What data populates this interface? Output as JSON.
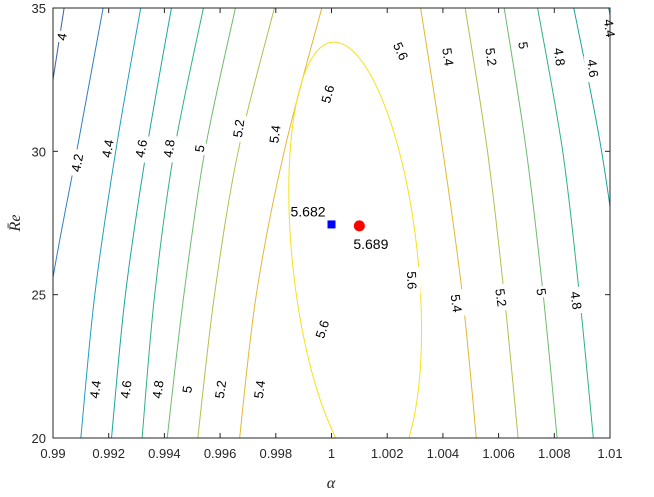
{
  "chart_data": {
    "type": "contour",
    "title": "",
    "xlabel": "α",
    "ylabel": "R̄e",
    "xlim": [
      0.99,
      1.01
    ],
    "ylim": [
      20,
      35
    ],
    "xticks": [
      0.99,
      0.992,
      0.994,
      0.996,
      0.998,
      1,
      1.002,
      1.004,
      1.006,
      1.008,
      1.01
    ],
    "xtick_labels": [
      "0.99",
      "0.992",
      "0.994",
      "0.996",
      "0.998",
      "1",
      "1.002",
      "1.004",
      "1.006",
      "1.008",
      "1.01"
    ],
    "yticks": [
      20,
      25,
      30,
      35
    ],
    "ytick_labels": [
      "20",
      "25",
      "30",
      "35"
    ],
    "grid": false,
    "contour_levels": [
      4,
      4.2,
      4.4,
      4.6,
      4.8,
      5,
      5.2,
      5.4,
      5.6
    ],
    "level_colors": {
      "4": "#3d5fa5",
      "4.2": "#2f7fbf",
      "4.4": "#1f9fc0",
      "4.6": "#1aa79c",
      "4.8": "#2fb089",
      "5": "#6fbb6f",
      "5.2": "#b7bd4d",
      "5.4": "#e2b833",
      "5.6": "#f5e11c"
    },
    "left_lines": [
      {
        "level": 4,
        "x": [
          0.9904,
          0.9896,
          0.9888,
          0.9881
        ],
        "y": [
          35,
          30,
          25,
          20
        ]
      },
      {
        "level": 4.2,
        "x": [
          0.9918,
          0.99085,
          0.9899,
          0.98925
        ],
        "y": [
          35,
          30,
          25,
          20
        ]
      },
      {
        "level": 4.4,
        "x": [
          0.99315,
          0.99225,
          0.9915,
          0.991
        ],
        "y": [
          35,
          30,
          25,
          20
        ]
      },
      {
        "level": 4.6,
        "x": [
          0.99425,
          0.99335,
          0.9926,
          0.9921
        ],
        "y": [
          35,
          30,
          25,
          20
        ]
      },
      {
        "level": 4.8,
        "x": [
          0.9954,
          0.99435,
          0.99365,
          0.9932
        ],
        "y": [
          35,
          30,
          25,
          20
        ]
      },
      {
        "level": 5,
        "x": [
          0.99655,
          0.99545,
          0.9947,
          0.9941
        ],
        "y": [
          35,
          30,
          25,
          20
        ]
      },
      {
        "level": 5.2,
        "x": [
          0.99795,
          0.99665,
          0.9958,
          0.9952
        ],
        "y": [
          35,
          30,
          25,
          20
        ]
      },
      {
        "level": 5.4,
        "x": [
          0.99965,
          0.9983,
          0.9973,
          0.9967
        ],
        "y": [
          35,
          30,
          25,
          20
        ]
      }
    ],
    "right_lines": [
      {
        "level": 5.4,
        "x": [
          1.0032,
          1.004,
          1.0047,
          1.0052
        ],
        "y": [
          35,
          30,
          25,
          20
        ]
      },
      {
        "level": 5.2,
        "x": [
          1.0048,
          1.0056,
          1.0062,
          1.0067
        ],
        "y": [
          35,
          30,
          25,
          20
        ]
      },
      {
        "level": 5,
        "x": [
          1.0062,
          1.007,
          1.0076,
          1.0081
        ],
        "y": [
          35,
          30,
          25,
          20
        ]
      },
      {
        "level": 4.8,
        "x": [
          1.0074,
          1.0083,
          1.0089,
          1.0094
        ],
        "y": [
          35,
          30,
          25,
          20
        ]
      },
      {
        "level": 4.6,
        "x": [
          1.0087,
          1.0097,
          1.0104,
          1.0109
        ],
        "y": [
          35,
          30,
          25,
          20
        ]
      },
      {
        "level": 4.4,
        "x": [
          1.00995,
          1.011,
          1.0118,
          1.0123
        ],
        "y": [
          35,
          30,
          25,
          20
        ]
      }
    ],
    "ellipse_5_6": {
      "level": 5.6,
      "center": [
        1.00085,
        26.2
      ],
      "half_width_x": 0.00225,
      "half_height_y": 7.65,
      "tilt_deg": -6
    },
    "contour_labels": [
      {
        "text": "4",
        "x": 0.9903,
        "y": 34.0,
        "rot": -80
      },
      {
        "text": "4.2",
        "x": 0.99085,
        "y": 29.6,
        "rot": -80
      },
      {
        "text": "4.4",
        "x": 0.99195,
        "y": 30.1,
        "rot": -80
      },
      {
        "text": "4.6",
        "x": 0.99315,
        "y": 30.1,
        "rot": -80
      },
      {
        "text": "4.8",
        "x": 0.99415,
        "y": 30.1,
        "rot": -82
      },
      {
        "text": "5",
        "x": 0.99525,
        "y": 30.1,
        "rot": -82
      },
      {
        "text": "5.2",
        "x": 0.99665,
        "y": 30.8,
        "rot": -82
      },
      {
        "text": "5.4",
        "x": 0.99795,
        "y": 30.6,
        "rot": -82
      },
      {
        "text": "5.6",
        "x": 0.99985,
        "y": 32.0,
        "rot": -75
      },
      {
        "text": "5.6",
        "x": 1.0025,
        "y": 33.5,
        "rot": 65
      },
      {
        "text": "5.4",
        "x": 1.0042,
        "y": 33.3,
        "rot": 82
      },
      {
        "text": "5.2",
        "x": 1.00575,
        "y": 33.3,
        "rot": 82
      },
      {
        "text": "5",
        "x": 1.0069,
        "y": 33.7,
        "rot": 82
      },
      {
        "text": "4.8",
        "x": 1.0082,
        "y": 33.3,
        "rot": 82
      },
      {
        "text": "4.6",
        "x": 1.0094,
        "y": 32.9,
        "rot": 82
      },
      {
        "text": "4.4",
        "x": 1.01,
        "y": 34.3,
        "rot": 82
      },
      {
        "text": "4.4",
        "x": 0.9915,
        "y": 21.7,
        "rot": -82
      },
      {
        "text": "4.6",
        "x": 0.9926,
        "y": 21.7,
        "rot": -82
      },
      {
        "text": "4.8",
        "x": 0.99375,
        "y": 21.7,
        "rot": -82
      },
      {
        "text": "5",
        "x": 0.9948,
        "y": 21.7,
        "rot": -82
      },
      {
        "text": "5.2",
        "x": 0.996,
        "y": 21.7,
        "rot": -82
      },
      {
        "text": "5.4",
        "x": 0.9974,
        "y": 21.7,
        "rot": -82
      },
      {
        "text": "5.6",
        "x": 0.99965,
        "y": 23.8,
        "rot": -72
      },
      {
        "text": "5.6",
        "x": 1.0029,
        "y": 25.5,
        "rot": 88
      },
      {
        "text": "5.4",
        "x": 1.0045,
        "y": 24.7,
        "rot": 82
      },
      {
        "text": "5.2",
        "x": 1.0061,
        "y": 24.9,
        "rot": 82
      },
      {
        "text": "5",
        "x": 1.00755,
        "y": 25.1,
        "rot": 82
      },
      {
        "text": "4.8",
        "x": 1.0088,
        "y": 24.8,
        "rot": 82
      }
    ],
    "markers": [
      {
        "name": "blue-square",
        "x": 1.0,
        "y": 27.45,
        "shape": "square",
        "color": "#0000ff",
        "label": "5.682",
        "label_pos": "upper-left"
      },
      {
        "name": "red-circle",
        "x": 1.001,
        "y": 27.4,
        "shape": "circle",
        "color": "#ff0000",
        "label": "5.689",
        "label_pos": "lower-right"
      }
    ]
  }
}
